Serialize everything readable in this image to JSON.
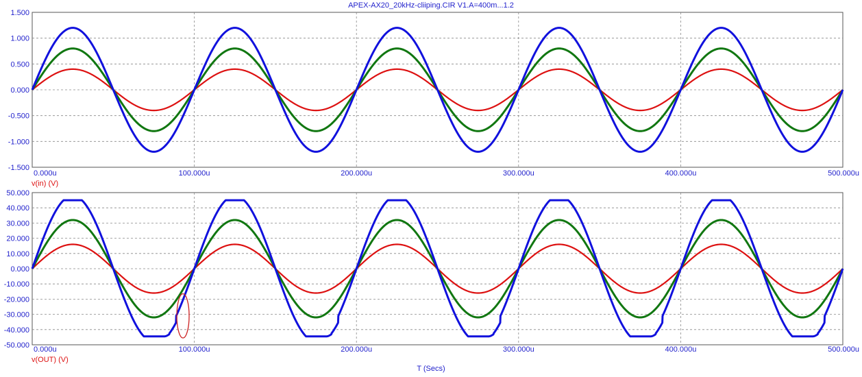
{
  "window": {
    "title": "APEX-AX20_20kHz-cliiping.CIR V1.A=400m...1.2"
  },
  "colors": {
    "axis_text": "#2222cc",
    "series_red": "#dd1111",
    "series_green": "#117711",
    "series_blue": "#1111dd",
    "grid": "#888888",
    "annotation": "#cc2222"
  },
  "xaxis_label": "T (Secs)",
  "chart_data": [
    {
      "type": "line",
      "ylabel": "v(in) (V)",
      "ylim": [
        -1.5,
        1.5
      ],
      "xlim": [
        0,
        500
      ],
      "x_unit": "u",
      "x_ticks": [
        "0.000u",
        "100.000u",
        "200.000u",
        "300.000u",
        "400.000u",
        "500.000u"
      ],
      "y_ticks": [
        "1.500",
        "1.000",
        "0.500",
        "0.000",
        "-0.500",
        "-1.000",
        "-1.500"
      ],
      "y_tick_values": [
        1.5,
        1.0,
        0.5,
        0.0,
        -0.5,
        -1.0,
        -1.5
      ],
      "grid": true,
      "waveform": "sine",
      "frequency_hz": 10000,
      "series": [
        {
          "color": "#dd1111",
          "amplitude": 0.4
        },
        {
          "color": "#117711",
          "amplitude": 0.8
        },
        {
          "color": "#1111dd",
          "amplitude": 1.2
        }
      ]
    },
    {
      "type": "line",
      "ylabel": "v(OUT) (V)",
      "ylim": [
        -50,
        50
      ],
      "xlim": [
        0,
        500
      ],
      "x_unit": "u",
      "x_ticks": [
        "0.000u",
        "100.000u",
        "200.000u",
        "300.000u",
        "400.000u",
        "500.000u"
      ],
      "y_ticks": [
        "50.000",
        "40.000",
        "30.000",
        "20.000",
        "10.000",
        "0.000",
        "-10.000",
        "-20.000",
        "-30.000",
        "-40.000",
        "-50.000"
      ],
      "y_tick_values": [
        50,
        40,
        30,
        20,
        10,
        0,
        -10,
        -20,
        -30,
        -40,
        -50
      ],
      "grid": true,
      "waveform": "sine",
      "frequency_hz": 10000,
      "series": [
        {
          "color": "#dd1111",
          "amplitude": 16
        },
        {
          "color": "#117711",
          "amplitude": 32
        },
        {
          "color": "#1111dd",
          "amplitude": 48,
          "clip_high": 45,
          "clip_low": -44.5,
          "recovery_us": 3.5
        }
      ],
      "annotation": {
        "type": "ellipse",
        "color": "#cc2222",
        "center_x_us": 93,
        "center_y": -31,
        "radius_x_us": 3.8,
        "radius_y": 14.5
      }
    }
  ]
}
